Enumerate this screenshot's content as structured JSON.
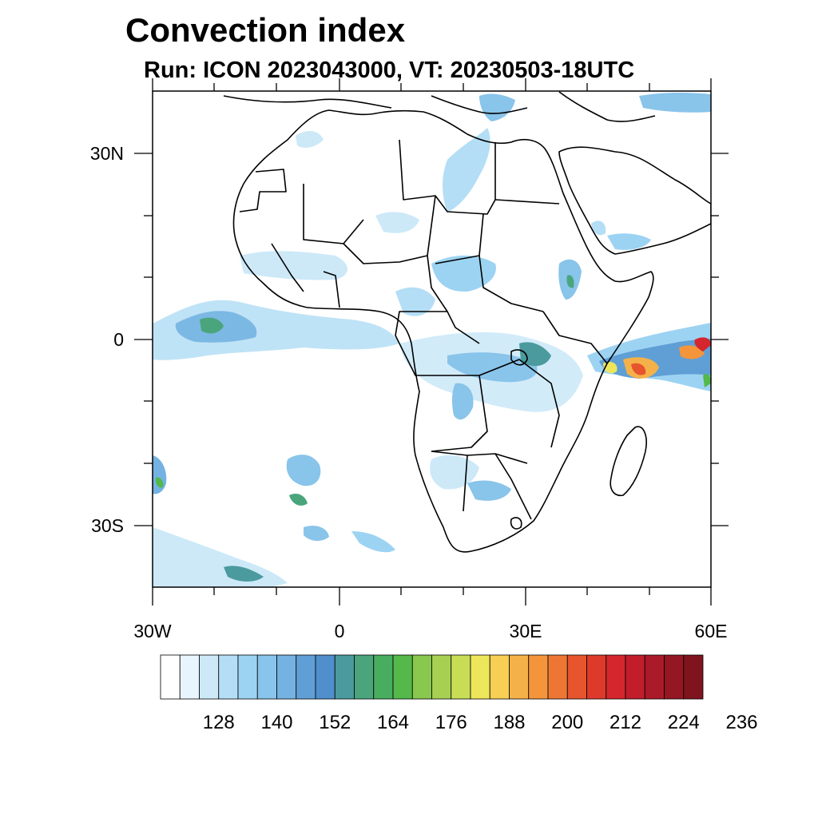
{
  "title": "Convection index",
  "subtitle": "Run: ICON 2023043000,  VT: 20230503-18UTC",
  "map": {
    "region": "Africa",
    "lon_range": [
      -30,
      60
    ],
    "lat_range": [
      -40,
      40
    ],
    "x_tick_labels": [
      {
        "lon": -30,
        "label": "30W"
      },
      {
        "lon": 0,
        "label": "0"
      },
      {
        "lon": 30,
        "label": "30E"
      },
      {
        "lon": 60,
        "label": "60E"
      }
    ],
    "y_tick_labels": [
      {
        "lat": 30,
        "label": "30N"
      },
      {
        "lat": 0,
        "label": "0"
      },
      {
        "lat": -30,
        "label": "30S"
      }
    ]
  },
  "colorbar": {
    "colors": [
      "#ffffff",
      "#e8f5fc",
      "#cde9f8",
      "#b4def5",
      "#9dd3f2",
      "#89c4ea",
      "#74b2e2",
      "#5f9fd6",
      "#4f8fcb",
      "#4b9a9e",
      "#4aa57c",
      "#48ad5e",
      "#54b84a",
      "#88c84e",
      "#a7d053",
      "#c8dd56",
      "#eee65a",
      "#f7cf55",
      "#f5b149",
      "#f4953c",
      "#ee7634",
      "#e6552d",
      "#de3a2c",
      "#d4262c",
      "#c11d2b",
      "#ab1a28",
      "#951723",
      "#7f141e"
    ],
    "labels": [
      "128",
      "140",
      "152",
      "164",
      "176",
      "188",
      "200",
      "212",
      "224",
      "236"
    ]
  }
}
